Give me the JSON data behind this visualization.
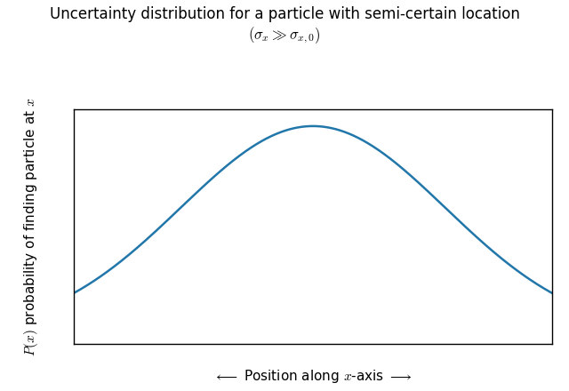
{
  "title_line1": "Uncertainty distribution for a particle with semi-certain location",
  "title_line2": "$(\\sigma_x \\gg \\sigma_{x,0})$",
  "xlabel": "$\\longleftarrow$ Position along $x$-axis $\\longrightarrow$",
  "ylabel": "$P(x)$ probability of finding particle at $x$",
  "curve_color": "#2277aa",
  "curve_linewidth": 1.8,
  "background_color": "#ffffff",
  "spine_color": "#000000",
  "gauss_mean": 0.0,
  "gauss_std": 0.72,
  "x_range": [
    -1.3,
    1.3
  ],
  "ylim_min": -0.05,
  "ylim_max": 1.08,
  "title_fontsize": 12,
  "label_fontsize": 11
}
